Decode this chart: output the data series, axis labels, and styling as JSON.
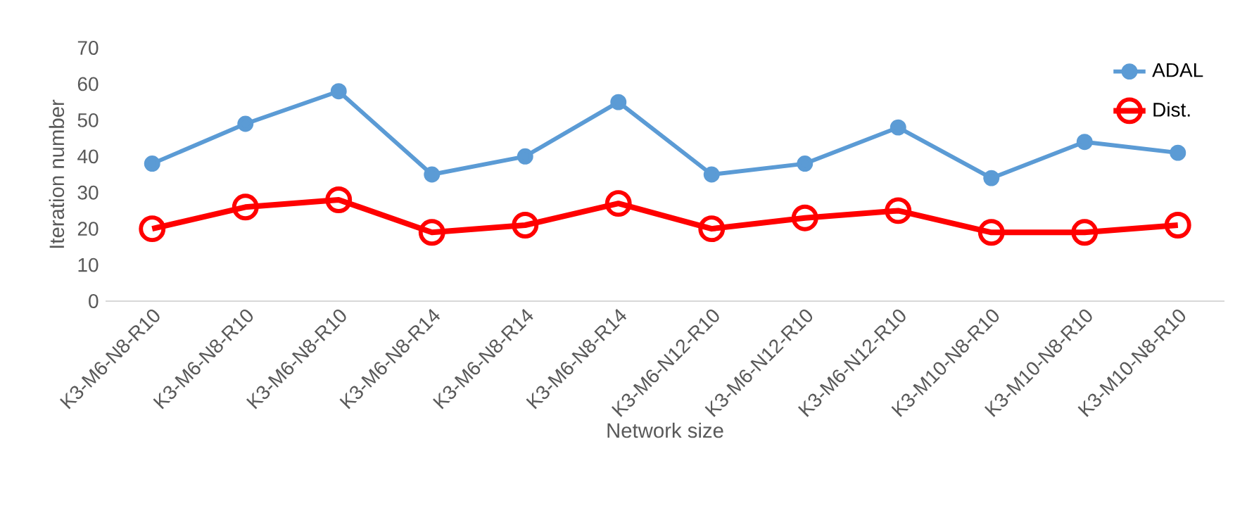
{
  "chart_data": {
    "type": "line",
    "xlabel": "Network size",
    "ylabel": "Iteration number",
    "categories": [
      "K3-M6-N8-R10",
      "K3-M6-N8-R10",
      "K3-M6-N8-R10",
      "K3-M6-N8-R14",
      "K3-M6-N8-R14",
      "K3-M6-N8-R14",
      "K3-M6-N12-R10",
      "K3-M6-N12-R10",
      "K3-M6-N12-R10",
      "K3-M10-N8-R10",
      "K3-M10-N8-R10",
      "K3-M10-N8-R10"
    ],
    "series": [
      {
        "name": "ADAL",
        "color": "#5b9bd5",
        "values": [
          38,
          49,
          58,
          35,
          40,
          55,
          35,
          38,
          48,
          34,
          44,
          41
        ]
      },
      {
        "name": "Dist.",
        "color": "#ff0000",
        "values": [
          20,
          26,
          28,
          19,
          21,
          27,
          20,
          23,
          25,
          19,
          19,
          21
        ]
      }
    ],
    "ylim": [
      0,
      70
    ],
    "yticks": [
      0,
      10,
      20,
      30,
      40,
      50,
      60,
      70
    ],
    "grid": false,
    "legend": "top right",
    "marker": "circle",
    "line_style": "solid"
  }
}
